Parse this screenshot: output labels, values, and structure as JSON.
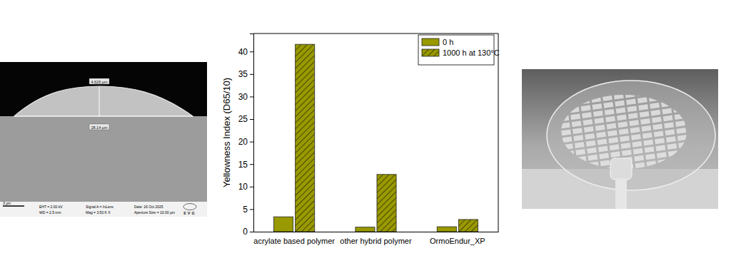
{
  "chart_data": {
    "type": "bar",
    "y_label": "Yellowness Index (D65/10)",
    "categories": [
      "acrylate based polymer",
      "other hybrid polymer",
      "OrmoEndur_XP"
    ],
    "series": [
      {
        "name": "0 h",
        "color": "#999900",
        "values": [
          3.3,
          1.0,
          1.1
        ]
      },
      {
        "name": "1000 h at 130°C",
        "color": "#999900",
        "values": [
          41.6,
          12.7,
          2.7
        ]
      }
    ],
    "ylim": [
      0,
      44
    ],
    "yticks": [
      0,
      5,
      10,
      15,
      20,
      25,
      30,
      35,
      40
    ],
    "grid": false,
    "legend": "upper right"
  },
  "sem_image": {
    "measurements": [
      "4.626 µm",
      "28.14 µm"
    ],
    "scale_bar": "3 µm",
    "info": [
      [
        "EHT = 2.00 kV",
        "WD = 2.5 mm"
      ],
      [
        "Signal A = InLens",
        "Mag = 3.50 K X"
      ],
      [
        "Date: 16 Oct 2025",
        "Aperture Size = 10.00 µm"
      ]
    ],
    "logo": "EVG"
  }
}
